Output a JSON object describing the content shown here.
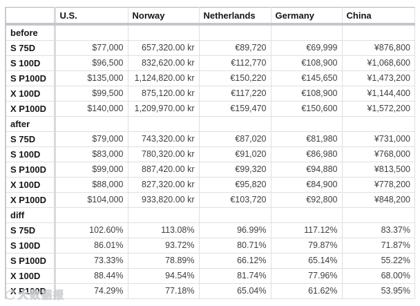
{
  "chart_data": {
    "type": "table",
    "title": "",
    "columns": [
      "",
      "U.S.",
      "Norway",
      "Netherlands",
      "Germany",
      "China"
    ],
    "sections": [
      {
        "label": "before",
        "rows": [
          {
            "label": "S 75D",
            "values": [
              "$77,000",
              "657,320.00 kr",
              "€89,720",
              "€69,999",
              "¥876,800"
            ]
          },
          {
            "label": "S 100D",
            "values": [
              "$96,500",
              "832,620.00 kr",
              "€112,770",
              "€108,900",
              "¥1,068,600"
            ]
          },
          {
            "label": "S P100D",
            "values": [
              "$135,000",
              "1,124,820.00 kr",
              "€150,220",
              "€145,650",
              "¥1,473,200"
            ]
          },
          {
            "label": "X 100D",
            "values": [
              "$99,500",
              "875,120.00 kr",
              "€117,220",
              "€108,900",
              "¥1,144,400"
            ]
          },
          {
            "label": "X P100D",
            "values": [
              "$140,000",
              "1,209,970.00 kr",
              "€159,470",
              "€150,600",
              "¥1,572,200"
            ]
          }
        ]
      },
      {
        "label": "after",
        "rows": [
          {
            "label": "S 75D",
            "values": [
              "$79,000",
              "743,320.00 kr",
              "€87,020",
              "€81,980",
              "¥731,000"
            ]
          },
          {
            "label": "S 100D",
            "values": [
              "$83,000",
              "780,320.00 kr",
              "€91,020",
              "€86,980",
              "¥768,000"
            ]
          },
          {
            "label": "S P100D",
            "values": [
              "$99,000",
              "887,420.00 kr",
              "€99,320",
              "€94,880",
              "¥813,500"
            ]
          },
          {
            "label": "X 100D",
            "values": [
              "$88,000",
              "827,320.00 kr",
              "€95,820",
              "€84,900",
              "¥778,200"
            ]
          },
          {
            "label": "X P100D",
            "values": [
              "$104,000",
              "933,820.00 kr",
              "€103,720",
              "€92,800",
              "¥848,200"
            ]
          }
        ]
      },
      {
        "label": "diff",
        "rows": [
          {
            "label": "S 75D",
            "values": [
              "102.60%",
              "113.08%",
              "96.99%",
              "117.12%",
              "83.37%"
            ]
          },
          {
            "label": "S 100D",
            "values": [
              "86.01%",
              "93.72%",
              "80.71%",
              "79.87%",
              "71.87%"
            ]
          },
          {
            "label": "S P100D",
            "values": [
              "73.33%",
              "78.89%",
              "66.12%",
              "65.14%",
              "55.22%"
            ]
          },
          {
            "label": "X 100D",
            "values": [
              "88.44%",
              "94.54%",
              "81.74%",
              "77.96%",
              "68.00%"
            ]
          },
          {
            "label": "X P100D",
            "values": [
              "74.29%",
              "77.18%",
              "65.04%",
              "61.62%",
              "53.95%"
            ]
          }
        ]
      }
    ]
  },
  "watermark": {
    "text": "大数据报"
  },
  "colors": {
    "grid": "#dcdfe2",
    "header_band": "#c3c7cc",
    "pane_divider": "#d8dadc",
    "label_text": "#161616",
    "value_text": "#3e3e3e",
    "watermark": "#c9cdd1"
  }
}
